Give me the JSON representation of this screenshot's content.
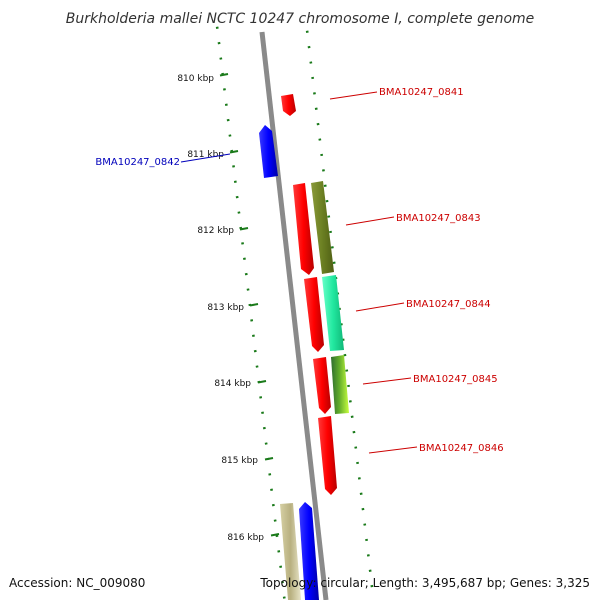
{
  "title": "Burkholderia mallei NCTC 10247 chromosome I, complete genome",
  "footer": {
    "accession": "Accession: NC_009080",
    "topology": "Topology: circular; Length: 3,495,687 bp; Genes: 3,325"
  },
  "scale_labels": [
    "810 kbp",
    "811 kbp",
    "812 kbp",
    "813 kbp",
    "814 kbp",
    "815 kbp",
    "816 kbp"
  ],
  "genes": [
    {
      "label": "BMA10247_0841",
      "color": "#cc0000"
    },
    {
      "label": "BMA10247_0842",
      "color": "#0000bb"
    },
    {
      "label": "BMA10247_0843",
      "color": "#cc0000"
    },
    {
      "label": "BMA10247_0844",
      "color": "#cc0000"
    },
    {
      "label": "BMA10247_0845",
      "color": "#cc0000"
    },
    {
      "label": "BMA10247_0846",
      "color": "#cc0000"
    }
  ],
  "colors": {
    "backbone": "#808080",
    "tick": "#1a7a1a",
    "forward_gene": "#ff0000",
    "reverse_gene": "#0000ff",
    "olive_feature": "#6b7f22",
    "teal_feature": "#22e8a0",
    "lime_feature": "#88dd22",
    "khaki_feature": "#b8b080"
  }
}
